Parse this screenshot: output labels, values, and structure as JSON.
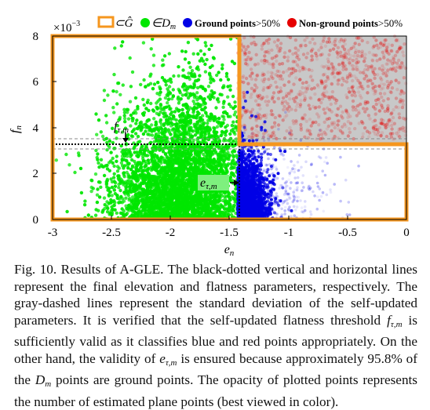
{
  "figure": {
    "legend": {
      "item1": "⊂Ĝ",
      "item2": "∈D",
      "item2_sub": "m",
      "item3": "Ground points",
      "item3_suffix": ">50%",
      "item4": "Non-ground points",
      "item4_suffix": ">50%"
    },
    "y_multiplier_base": "×10",
    "y_multiplier_exp": "−3",
    "annotation_f": "f",
    "annotation_f_sub": "τ,m",
    "annotation_e": "e",
    "annotation_e_sub": "τ,m",
    "colors": {
      "region_box": "#f5961e",
      "in_Dm": "#00e600",
      "ground": "#0000e6",
      "non_ground": "#e60000",
      "gray_region": "#c8c8c8"
    }
  },
  "chart_data": {
    "type": "scatter",
    "xlabel": "e_n",
    "ylabel": "f_n",
    "xlim": [
      -3,
      0
    ],
    "ylim": [
      0,
      8
    ],
    "x_ticks": [
      "-3",
      "-2.5",
      "-2",
      "-1.5",
      "-1",
      "-0.5",
      "0"
    ],
    "y_ticks": [
      "0",
      "2",
      "4",
      "6",
      "8"
    ],
    "thresholds": {
      "e_tau_m": -1.43,
      "f_tau_m": 3.3,
      "f_std_upper": 3.55,
      "f_std_lower": 3.1
    },
    "regions": [
      {
        "name": "⊂Ĝ",
        "x_range": [
          -3,
          -1.43
        ],
        "y_range": [
          0,
          8
        ]
      },
      {
        "name": "⊂Ĝ",
        "x_range": [
          -1.43,
          0
        ],
        "y_range": [
          0,
          3.3
        ]
      }
    ],
    "grid": false
  },
  "caption": {
    "text": "Fig. 10. Results of A-GLE. The black-dotted vertical and horizontal lines represent the final elevation and flatness parameters, respectively. The gray-dashed lines represent the standard deviation of the self-updated parameters. It is verified that the self-updated flatness threshold f_{τ,m} is sufficiently valid as it classifies blue and red points appropriately. On the other hand, the validity of e_{τ,m} is ensured because approximately 95.8% of the D_m points are ground points. The opacity of plotted points represents the number of estimated plane points (best viewed in color).",
    "p1": "Fig. 10. Results of A-GLE. The black-dotted vertical and horizontal lines represent the final elevation and flatness parameters, respectively. The gray-dashed lines represent the standard deviation of the self-updated parameters. It is verified that the self-updated flatness threshold ",
    "f": "f",
    "f_sub": "τ,m",
    "p2": " is sufficiently valid as it classifies blue and red points appropriately. On the other hand, the validity of ",
    "e": "e",
    "e_sub": "τ,m",
    "p3": " is ensured because approximately 95.8% of the ",
    "D": "D",
    "D_sub": "m",
    "p4": " points are ground points. The opacity of plotted points represents the number of estimated plane points (best viewed in color)."
  }
}
